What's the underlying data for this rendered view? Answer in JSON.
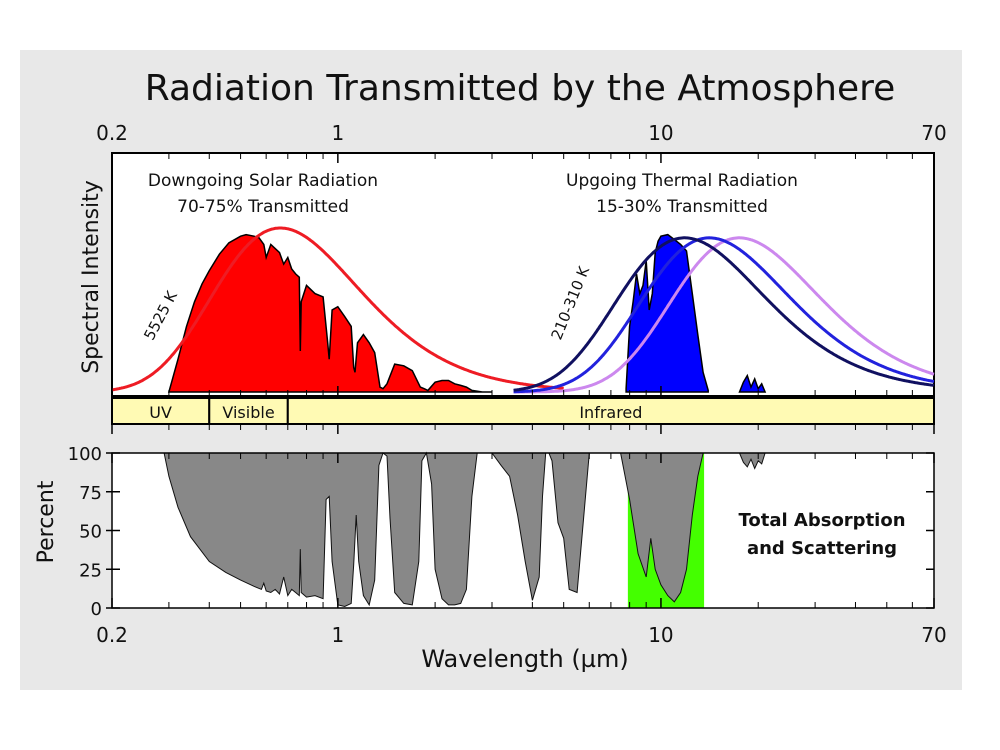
{
  "figure": {
    "title": "Radiation Transmitted by the Atmosphere",
    "xlabel": "Wavelength (µm)",
    "colors": {
      "panel_bg": "#e8e8e8",
      "solar_fill": "#ff0000",
      "solar_curve": "#ee1c24",
      "thermal_fill": "#0000ff",
      "thermal_curve_cold": "#cc88ee",
      "thermal_curve_mid": "#2222dd",
      "thermal_curve_warm": "#101060",
      "absorption_fill": "#888888",
      "ir_window_fill": "#44ff00",
      "band_fill": "#fffab4"
    }
  },
  "chart_data": [
    {
      "type": "area",
      "name": "spectral-intensity",
      "xscale": "log",
      "xlim": [
        0.2,
        70
      ],
      "x_ticks": [
        0.2,
        1,
        10,
        70
      ],
      "minor_ticks": [
        0.3,
        0.4,
        0.5,
        0.6,
        0.7,
        0.8,
        0.9,
        2,
        3,
        4,
        5,
        6,
        7,
        8,
        9,
        20,
        30,
        40,
        50,
        60
      ],
      "ylabel": "Spectral Intensity",
      "annotations": {
        "solar": {
          "line1": "Downgoing Solar Radiation",
          "line2": "70-75% Transmitted"
        },
        "thermal": {
          "line1": "Upgoing Thermal Radiation",
          "line2": "15-30% Transmitted"
        },
        "solar_temp": "5525 K",
        "thermal_temp": "210-310 K"
      },
      "bands": [
        {
          "label": "UV",
          "from": 0.2,
          "to": 0.4
        },
        {
          "label": "Visible",
          "from": 0.4,
          "to": 0.7
        },
        {
          "label": "Infrared",
          "from": 0.7,
          "to": 70
        }
      ],
      "series": [
        {
          "name": "5525 K blackbody",
          "kind": "planck",
          "temperature": 5525,
          "peak": 1.0
        },
        {
          "name": "210 K blackbody",
          "kind": "planck",
          "temperature": 210,
          "peak": 0.94
        },
        {
          "name": "260 K blackbody",
          "kind": "planck",
          "temperature": 260,
          "peak": 0.94
        },
        {
          "name": "310 K blackbody",
          "kind": "planck",
          "temperature": 310,
          "peak": 0.94
        },
        {
          "name": "transmitted solar",
          "x": [
            0.3,
            0.32,
            0.34,
            0.36,
            0.38,
            0.4,
            0.43,
            0.46,
            0.5,
            0.52,
            0.55,
            0.57,
            0.59,
            0.6,
            0.62,
            0.66,
            0.68,
            0.7,
            0.72,
            0.74,
            0.76,
            0.765,
            0.77,
            0.8,
            0.85,
            0.9,
            0.93,
            0.94,
            0.96,
            1.0,
            1.05,
            1.1,
            1.12,
            1.13,
            1.15,
            1.2,
            1.25,
            1.3,
            1.35,
            1.38,
            1.42,
            1.5,
            1.6,
            1.7,
            1.8,
            1.85,
            1.9,
            2.0,
            2.1,
            2.2,
            2.3,
            2.4,
            2.5,
            2.6,
            2.8,
            3.0
          ],
          "y": [
            0.0,
            0.2,
            0.4,
            0.55,
            0.66,
            0.74,
            0.84,
            0.91,
            0.95,
            0.96,
            0.95,
            0.94,
            0.9,
            0.82,
            0.9,
            0.85,
            0.78,
            0.82,
            0.75,
            0.72,
            0.7,
            0.25,
            0.55,
            0.65,
            0.6,
            0.58,
            0.3,
            0.2,
            0.5,
            0.52,
            0.46,
            0.4,
            0.15,
            0.12,
            0.3,
            0.35,
            0.3,
            0.24,
            0.03,
            0.02,
            0.05,
            0.17,
            0.16,
            0.13,
            0.03,
            0.02,
            0.01,
            0.06,
            0.07,
            0.07,
            0.05,
            0.04,
            0.03,
            0.01,
            0.0,
            0.0
          ]
        },
        {
          "name": "transmitted thermal",
          "x": [
            7.8,
            8.0,
            8.2,
            8.4,
            8.6,
            8.8,
            9.0,
            9.2,
            9.4,
            9.6,
            9.8,
            10.0,
            10.5,
            11.0,
            11.5,
            12.0,
            12.5,
            13.0,
            13.5,
            14.0
          ],
          "y": [
            0.02,
            0.4,
            0.55,
            0.72,
            0.6,
            0.65,
            0.8,
            0.5,
            0.6,
            0.85,
            0.92,
            0.95,
            0.96,
            0.93,
            0.9,
            0.86,
            0.6,
            0.35,
            0.12,
            0.01
          ]
        },
        {
          "name": "transmitted far-IR",
          "x": [
            17.5,
            18.0,
            18.5,
            19.0,
            19.5,
            20.0,
            20.5,
            21.0
          ],
          "y": [
            0.0,
            0.06,
            0.1,
            0.03,
            0.08,
            0.02,
            0.05,
            0.0
          ]
        }
      ]
    },
    {
      "type": "area",
      "name": "absorption",
      "xscale": "log",
      "xlim": [
        0.2,
        70
      ],
      "ylim": [
        0,
        100
      ],
      "ylabel": "Percent",
      "y_ticks": [
        0,
        25,
        50,
        75,
        100
      ],
      "x_ticks": [
        0.2,
        1,
        10,
        70
      ],
      "minor_ticks": [
        0.3,
        0.4,
        0.5,
        0.6,
        0.7,
        0.8,
        0.9,
        2,
        3,
        4,
        5,
        6,
        7,
        8,
        9,
        20,
        30,
        40,
        50,
        60
      ],
      "annotation": {
        "line1": "Total Absorption",
        "line2": "and Scattering"
      },
      "series": [
        {
          "name": "total absorption and scattering",
          "x": [
            0.2,
            0.29,
            0.3,
            0.32,
            0.35,
            0.4,
            0.45,
            0.5,
            0.55,
            0.58,
            0.59,
            0.6,
            0.62,
            0.64,
            0.66,
            0.68,
            0.7,
            0.72,
            0.74,
            0.76,
            0.765,
            0.77,
            0.8,
            0.85,
            0.9,
            0.92,
            0.94,
            0.96,
            1.0,
            1.05,
            1.1,
            1.12,
            1.14,
            1.16,
            1.2,
            1.25,
            1.3,
            1.34,
            1.38,
            1.42,
            1.45,
            1.5,
            1.6,
            1.7,
            1.78,
            1.82,
            1.88,
            1.95,
            2.0,
            2.1,
            2.2,
            2.3,
            2.4,
            2.5,
            2.6,
            2.7,
            2.8,
            3.0,
            3.2,
            3.4,
            3.6,
            3.8,
            4.0,
            4.2,
            4.3,
            4.4,
            4.5,
            4.6,
            4.8,
            5.0,
            5.2,
            5.5,
            6.0,
            7.0,
            7.5,
            8.0,
            8.5,
            9.0,
            9.3,
            9.6,
            10.0,
            10.5,
            11.0,
            11.5,
            12.0,
            12.5,
            13.0,
            13.5,
            14.0,
            15.0,
            16.0,
            17.0,
            17.5,
            18.0,
            18.5,
            19.0,
            19.5,
            20.0,
            20.5,
            21.0,
            22.0,
            30.0,
            70.0
          ],
          "y": [
            100,
            100,
            85,
            65,
            46,
            30,
            23,
            18,
            14,
            12,
            16,
            11,
            10,
            12,
            9,
            20,
            8,
            12,
            10,
            8,
            38,
            10,
            7,
            8,
            6,
            70,
            72,
            30,
            2,
            1,
            3,
            28,
            60,
            30,
            8,
            2,
            18,
            92,
            100,
            98,
            58,
            10,
            3,
            2,
            30,
            95,
            100,
            80,
            25,
            6,
            2,
            2,
            3,
            12,
            72,
            100,
            100,
            100,
            92,
            85,
            60,
            30,
            5,
            20,
            72,
            100,
            100,
            95,
            55,
            45,
            12,
            10,
            100,
            100,
            100,
            70,
            35,
            20,
            45,
            25,
            15,
            8,
            4,
            10,
            25,
            60,
            85,
            100,
            100,
            100,
            100,
            100,
            100,
            94,
            91,
            96,
            90,
            95,
            93,
            100,
            100,
            100,
            100
          ]
        }
      ]
    }
  ]
}
